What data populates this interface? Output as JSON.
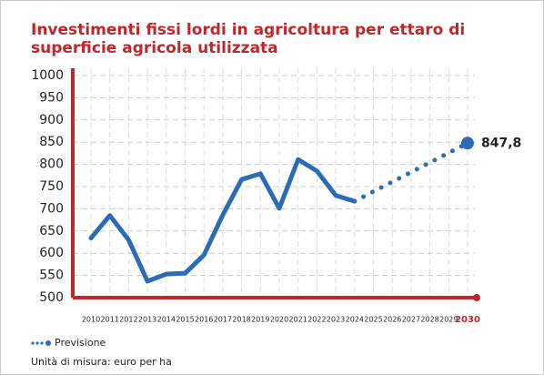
{
  "chart_data": {
    "type": "line",
    "title": "Investimenti fissi lordi in agricoltura per ettaro di superficie agricola utilizzata",
    "note": "Unità di misura: euro per ha",
    "xlim": [
      2010,
      2030
    ],
    "xticks": [
      2010,
      2011,
      2012,
      2013,
      2014,
      2015,
      2016,
      2017,
      2018,
      2019,
      2020,
      2021,
      2022,
      2023,
      2024,
      2025,
      2026,
      2027,
      2028,
      2029,
      2030
    ],
    "ylim": [
      500,
      1000
    ],
    "yticks": [
      500,
      550,
      600,
      650,
      700,
      750,
      800,
      850,
      900,
      950,
      1000
    ],
    "grid": true,
    "series": [
      {
        "color": "#2b6cb3",
        "x": [
          2010,
          2011,
          2012,
          2013,
          2014,
          2015,
          2016,
          2017,
          2018,
          2019,
          2020,
          2021,
          2022,
          2023,
          2024
        ],
        "values": [
          634,
          685,
          630,
          537,
          553,
          555,
          596,
          686,
          766,
          779,
          701,
          811,
          785,
          730,
          717
        ]
      },
      {
        "name": "Previsione",
        "color": "#2b6cb3",
        "dotted": true,
        "x": [
          2024,
          2030
        ],
        "values": [
          717,
          847.8
        ],
        "value_labels": [
          null,
          "847,8"
        ]
      }
    ]
  }
}
